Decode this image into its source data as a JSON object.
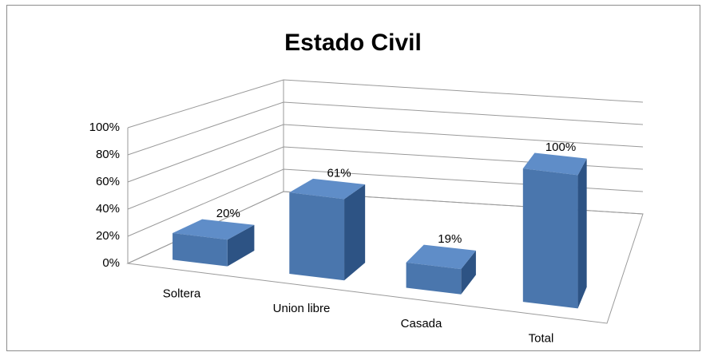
{
  "chart_data": {
    "type": "bar3d",
    "title": "Estado Civil",
    "categories": [
      "Soltera",
      "Union libre",
      "Casada",
      "Total"
    ],
    "values": [
      20,
      61,
      19,
      100
    ],
    "value_labels": [
      "20%",
      "61%",
      "19%",
      "100%"
    ],
    "color": "#4a76ad",
    "ylim": [
      0,
      100
    ],
    "yticks": [
      {
        "value": 0,
        "label": "0%"
      },
      {
        "value": 20,
        "label": "20%"
      },
      {
        "value": 40,
        "label": "40%"
      },
      {
        "value": 60,
        "label": "60%"
      },
      {
        "value": 80,
        "label": "80%"
      },
      {
        "value": 100,
        "label": "100%"
      }
    ],
    "grid": true
  }
}
